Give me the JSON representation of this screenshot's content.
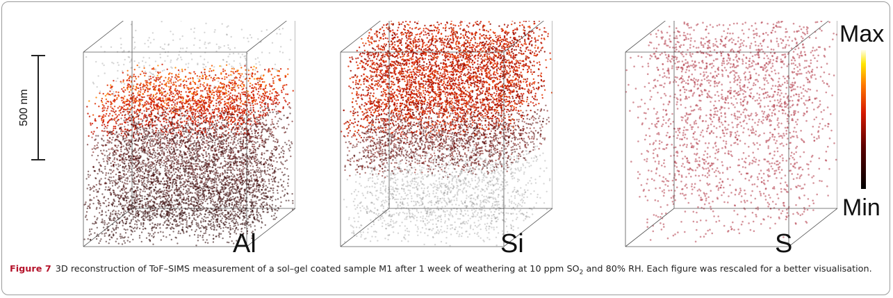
{
  "figure": {
    "scale_bar_label": "500 nm",
    "panels": [
      {
        "id": "al",
        "label": "Al"
      },
      {
        "id": "si",
        "label": "Si"
      },
      {
        "id": "s",
        "label": "S"
      }
    ],
    "colorbar": {
      "max_label": "Max",
      "min_label": "Min"
    },
    "caption": {
      "figure_label": "Figure 7",
      "text_part1": "3D reconstruction of ToF–SIMS measurement of a sol–gel coated sample M1 after 1 week of weathering at 10 ppm SO",
      "subscript": "2",
      "text_part2": " and 80% RH. Each figure was rescaled for a better visualisation."
    }
  }
}
